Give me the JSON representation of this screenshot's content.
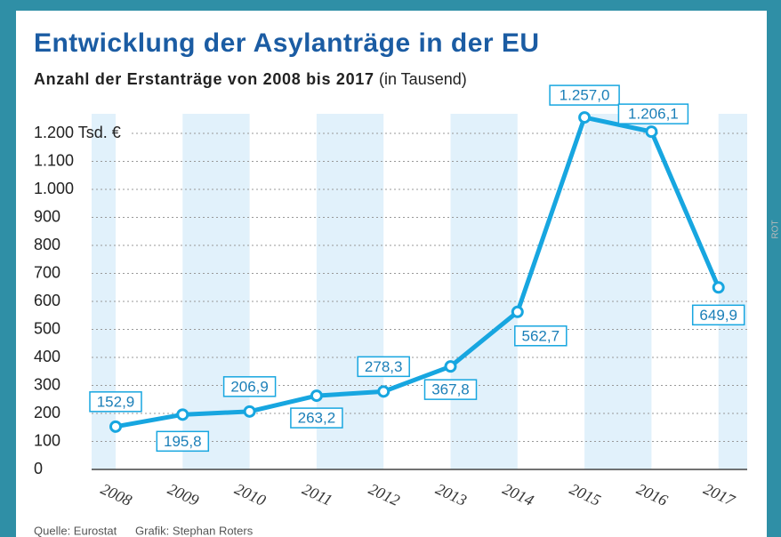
{
  "chart_data": {
    "type": "line",
    "title": "Entwicklung der Asylanträge in der EU",
    "subtitle": "Anzahl der Erstanträge von 2008 bis 2017",
    "subtitle_unit": "(in Tausend)",
    "categories": [
      "2008",
      "2009",
      "2010",
      "2011",
      "2012",
      "2013",
      "2014",
      "2015",
      "2016",
      "2017"
    ],
    "values": [
      152.9,
      195.8,
      206.9,
      263.2,
      278.3,
      367.8,
      562.7,
      1257.0,
      1206.1,
      649.9
    ],
    "value_labels": [
      "152,9",
      "195,8",
      "206,9",
      "263,2",
      "278,3",
      "367,8",
      "562,7",
      "1.257,0",
      "1.206,1",
      "649,9"
    ],
    "color": "#17a6e0",
    "ylim": [
      0,
      1270
    ],
    "yticks": [
      0,
      100,
      200,
      300,
      400,
      500,
      600,
      700,
      800,
      900,
      {
        "value": 1000,
        "label": "1.000"
      },
      {
        "value": 1100,
        "label": "1.100"
      },
      {
        "value": 1200,
        "label": "1.200 Tsd. €"
      }
    ],
    "grid": true,
    "source": "Quelle: Eurostat",
    "credit": "Grafik: Stephan Roters",
    "side_note": "ROT"
  }
}
